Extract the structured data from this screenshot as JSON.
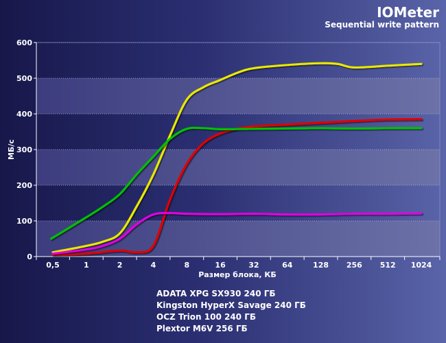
{
  "chart_data": {
    "type": "line",
    "title": "IOMeter",
    "subtitle": "Sequential write pattern",
    "xlabel": "Размер блока, КБ",
    "ylabel": "МБ/с",
    "ylim": [
      0,
      600
    ],
    "yticks": [
      "0",
      "100",
      "200",
      "300",
      "400",
      "500",
      "600"
    ],
    "categories": [
      "0,5",
      "1",
      "2",
      "4",
      "8",
      "16",
      "32",
      "64",
      "128",
      "256",
      "512",
      "1024"
    ],
    "grid": "horizontal bands",
    "legend_position": "bottom",
    "series": [
      {
        "name": "ADATA XPG SX930 240 ГБ",
        "color": "#e00000",
        "points": [
          [
            0,
            5
          ],
          [
            1,
            8
          ],
          [
            2,
            17
          ],
          [
            2.5,
            12
          ],
          [
            3,
            30
          ],
          [
            3.5,
            160
          ],
          [
            4,
            260
          ],
          [
            4.5,
            318
          ],
          [
            5,
            345
          ],
          [
            5.5,
            358
          ],
          [
            6,
            365
          ],
          [
            7,
            370
          ],
          [
            8,
            375
          ],
          [
            9,
            380
          ],
          [
            10,
            384
          ],
          [
            11,
            385
          ]
        ]
      },
      {
        "name": "Kingston HyperX Savage 240 ГБ",
        "color": "#e8e800",
        "points": [
          [
            0,
            12
          ],
          [
            1,
            30
          ],
          [
            1.5,
            42
          ],
          [
            2,
            65
          ],
          [
            2.5,
            140
          ],
          [
            3,
            230
          ],
          [
            3.5,
            340
          ],
          [
            4,
            440
          ],
          [
            4.5,
            475
          ],
          [
            5,
            495
          ],
          [
            5.5,
            515
          ],
          [
            6,
            528
          ],
          [
            7,
            537
          ],
          [
            8,
            542
          ],
          [
            8.5,
            540
          ],
          [
            9,
            530
          ],
          [
            10,
            535
          ],
          [
            11,
            540
          ]
        ]
      },
      {
        "name": "OCZ Trion 100 240 ГБ",
        "color": "#e000e0",
        "points": [
          [
            0,
            8
          ],
          [
            1,
            20
          ],
          [
            1.5,
            30
          ],
          [
            2,
            50
          ],
          [
            2.5,
            90
          ],
          [
            3,
            118
          ],
          [
            3.5,
            122
          ],
          [
            4,
            120
          ],
          [
            5,
            119
          ],
          [
            6,
            120
          ],
          [
            7,
            118
          ],
          [
            8,
            118
          ],
          [
            9,
            120
          ],
          [
            10,
            120
          ],
          [
            11,
            121
          ]
        ]
      },
      {
        "name": "Plextor M6V  256 ГБ",
        "color": "#00c000",
        "points": [
          [
            -0.05,
            50
          ],
          [
            1,
            110
          ],
          [
            1.5,
            140
          ],
          [
            2,
            175
          ],
          [
            2.5,
            230
          ],
          [
            3,
            280
          ],
          [
            3.5,
            330
          ],
          [
            4,
            358
          ],
          [
            4.5,
            360
          ],
          [
            5,
            357
          ],
          [
            6,
            358
          ],
          [
            7,
            359
          ],
          [
            8,
            360
          ],
          [
            9,
            359
          ],
          [
            10,
            360
          ],
          [
            11,
            360
          ]
        ]
      }
    ]
  }
}
